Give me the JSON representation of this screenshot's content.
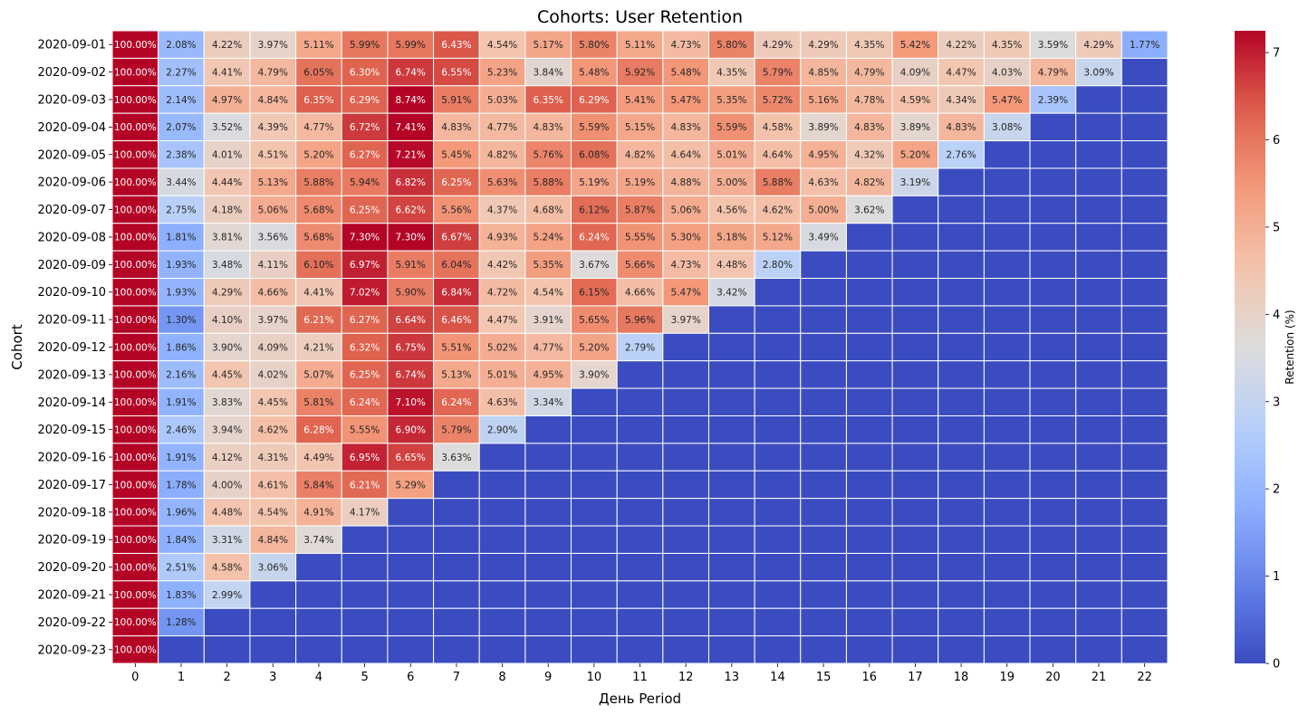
{
  "chart_data": {
    "type": "heatmap",
    "title": "Cohorts: User Retention",
    "xlabel": "День Period",
    "ylabel": "Cohort",
    "colorbar_label": "Retention (%)",
    "colormap": "coolwarm",
    "color_range": [
      0,
      7.25
    ],
    "colorbar_ticks": [
      0,
      1,
      2,
      3,
      4,
      5,
      6,
      7
    ],
    "colorbar_tick_labels": [
      "0",
      "1",
      "2",
      "3",
      "4",
      "5",
      "6",
      "7"
    ],
    "periods": [
      "0",
      "1",
      "2",
      "3",
      "4",
      "5",
      "6",
      "7",
      "8",
      "9",
      "10",
      "11",
      "12",
      "13",
      "14",
      "15",
      "16",
      "17",
      "18",
      "19",
      "20",
      "21",
      "22"
    ],
    "cohorts": [
      "2020-09-01",
      "2020-09-02",
      "2020-09-03",
      "2020-09-04",
      "2020-09-05",
      "2020-09-06",
      "2020-09-07",
      "2020-09-08",
      "2020-09-09",
      "2020-09-10",
      "2020-09-11",
      "2020-09-12",
      "2020-09-13",
      "2020-09-14",
      "2020-09-15",
      "2020-09-16",
      "2020-09-17",
      "2020-09-18",
      "2020-09-19",
      "2020-09-20",
      "2020-09-21",
      "2020-09-22",
      "2020-09-23"
    ],
    "values": [
      [
        100.0,
        2.08,
        4.22,
        3.97,
        5.11,
        5.99,
        5.99,
        6.43,
        4.54,
        5.17,
        5.8,
        5.11,
        4.73,
        5.8,
        4.29,
        4.29,
        4.35,
        5.42,
        4.22,
        4.35,
        3.59,
        4.29,
        1.77
      ],
      [
        100.0,
        2.27,
        4.41,
        4.79,
        6.05,
        6.3,
        6.74,
        6.55,
        5.23,
        3.84,
        5.48,
        5.92,
        5.48,
        4.35,
        5.79,
        4.85,
        4.79,
        4.09,
        4.47,
        4.03,
        4.79,
        3.09
      ],
      [
        100.0,
        2.14,
        4.97,
        4.84,
        6.35,
        6.29,
        8.74,
        5.91,
        5.03,
        6.35,
        6.29,
        5.41,
        5.47,
        5.35,
        5.72,
        5.16,
        4.78,
        4.59,
        4.34,
        5.47,
        2.39
      ],
      [
        100.0,
        2.07,
        3.52,
        4.39,
        4.77,
        6.72,
        7.41,
        4.83,
        4.77,
        4.83,
        5.59,
        5.15,
        4.83,
        5.59,
        4.58,
        3.89,
        4.83,
        3.89,
        4.83,
        3.08
      ],
      [
        100.0,
        2.38,
        4.01,
        4.51,
        5.2,
        6.27,
        7.21,
        5.45,
        4.82,
        5.76,
        6.08,
        4.82,
        4.64,
        5.01,
        4.64,
        4.95,
        4.32,
        5.2,
        2.76
      ],
      [
        100.0,
        3.44,
        4.44,
        5.13,
        5.88,
        5.94,
        6.82,
        6.25,
        5.63,
        5.88,
        5.19,
        5.19,
        4.88,
        5.0,
        5.88,
        4.63,
        4.82,
        3.19
      ],
      [
        100.0,
        2.75,
        4.18,
        5.06,
        5.68,
        6.25,
        6.62,
        5.56,
        4.37,
        4.68,
        6.12,
        5.87,
        5.06,
        4.56,
        4.62,
        5.0,
        3.62
      ],
      [
        100.0,
        1.81,
        3.81,
        3.56,
        5.68,
        7.3,
        7.3,
        6.67,
        4.93,
        5.24,
        6.24,
        5.55,
        5.3,
        5.18,
        5.12,
        3.49
      ],
      [
        100.0,
        1.93,
        3.48,
        4.11,
        6.1,
        6.97,
        5.91,
        6.04,
        4.42,
        5.35,
        3.67,
        5.66,
        4.73,
        4.48,
        2.8
      ],
      [
        100.0,
        1.93,
        4.29,
        4.66,
        4.41,
        7.02,
        5.9,
        6.84,
        4.72,
        4.54,
        6.15,
        4.66,
        5.47,
        3.42
      ],
      [
        100.0,
        1.3,
        4.1,
        3.97,
        6.21,
        6.27,
        6.64,
        6.46,
        4.47,
        3.91,
        5.65,
        5.96,
        3.97
      ],
      [
        100.0,
        1.86,
        3.9,
        4.09,
        4.21,
        6.32,
        6.75,
        5.51,
        5.02,
        4.77,
        5.2,
        2.79
      ],
      [
        100.0,
        2.16,
        4.45,
        4.02,
        5.07,
        6.25,
        6.74,
        5.13,
        5.01,
        4.95,
        3.9
      ],
      [
        100.0,
        1.91,
        3.83,
        4.45,
        5.81,
        6.24,
        7.1,
        6.24,
        4.63,
        3.34
      ],
      [
        100.0,
        2.46,
        3.94,
        4.62,
        6.28,
        5.55,
        6.9,
        5.79,
        2.9
      ],
      [
        100.0,
        1.91,
        4.12,
        4.31,
        4.49,
        6.95,
        6.65,
        3.63
      ],
      [
        100.0,
        1.78,
        4.0,
        4.61,
        5.84,
        6.21,
        5.29
      ],
      [
        100.0,
        1.96,
        4.48,
        4.54,
        4.91,
        4.17
      ],
      [
        100.0,
        1.84,
        3.31,
        4.84,
        3.74
      ],
      [
        100.0,
        2.51,
        4.58,
        3.06
      ],
      [
        100.0,
        1.83,
        2.99
      ],
      [
        100.0,
        1.28
      ],
      [
        100.0
      ]
    ]
  }
}
